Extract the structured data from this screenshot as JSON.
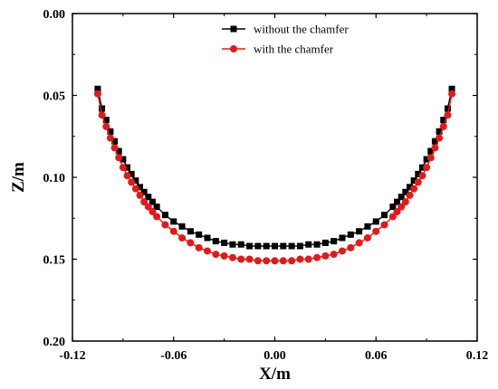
{
  "chart_data": {
    "type": "line",
    "xlabel": "X/m",
    "ylabel": "Z/m",
    "xlim": [
      -0.12,
      0.12
    ],
    "ylim": [
      0.0,
      0.2
    ],
    "y_inverted": true,
    "xticks": [
      -0.12,
      -0.06,
      0.0,
      0.06,
      0.12
    ],
    "xtick_labels": [
      "-0.12",
      "-0.06",
      "0.00",
      "0.06",
      "0.12"
    ],
    "yticks": [
      0.0,
      0.05,
      0.1,
      0.15,
      0.2
    ],
    "ytick_labels": [
      "0.00",
      "0.05",
      "0.10",
      "0.15",
      "0.20"
    ],
    "legend_position": "top-right",
    "series": [
      {
        "name": "without the chamfer",
        "color": "#000000",
        "marker": "square",
        "x": [
          -0.105,
          -0.1025,
          -0.1,
          -0.0975,
          -0.095,
          -0.0925,
          -0.09,
          -0.0875,
          -0.085,
          -0.0825,
          -0.08,
          -0.0775,
          -0.075,
          -0.0725,
          -0.07,
          -0.065,
          -0.06,
          -0.055,
          -0.05,
          -0.045,
          -0.04,
          -0.035,
          -0.03,
          -0.025,
          -0.02,
          -0.015,
          -0.01,
          -0.005,
          0.0,
          0.005,
          0.01,
          0.015,
          0.02,
          0.025,
          0.03,
          0.035,
          0.04,
          0.045,
          0.05,
          0.055,
          0.06,
          0.065,
          0.07,
          0.0725,
          0.075,
          0.0775,
          0.08,
          0.0825,
          0.085,
          0.0875,
          0.09,
          0.0925,
          0.095,
          0.0975,
          0.1,
          0.1025,
          0.105
        ],
        "y": [
          0.046,
          0.058,
          0.065,
          0.072,
          0.078,
          0.084,
          0.089,
          0.094,
          0.098,
          0.102,
          0.106,
          0.109,
          0.112,
          0.115,
          0.118,
          0.123,
          0.127,
          0.13,
          0.133,
          0.135,
          0.137,
          0.139,
          0.14,
          0.141,
          0.141,
          0.142,
          0.142,
          0.142,
          0.142,
          0.142,
          0.142,
          0.142,
          0.141,
          0.141,
          0.14,
          0.139,
          0.137,
          0.135,
          0.133,
          0.13,
          0.127,
          0.123,
          0.118,
          0.115,
          0.112,
          0.109,
          0.106,
          0.102,
          0.098,
          0.094,
          0.089,
          0.084,
          0.078,
          0.072,
          0.065,
          0.058,
          0.046
        ]
      },
      {
        "name": "with the chamfer",
        "color": "#e01b1b",
        "marker": "circle",
        "x": [
          -0.105,
          -0.1025,
          -0.1,
          -0.0975,
          -0.095,
          -0.0925,
          -0.09,
          -0.0875,
          -0.085,
          -0.0825,
          -0.08,
          -0.0775,
          -0.075,
          -0.0725,
          -0.07,
          -0.065,
          -0.06,
          -0.055,
          -0.05,
          -0.045,
          -0.04,
          -0.035,
          -0.03,
          -0.025,
          -0.02,
          -0.015,
          -0.01,
          -0.005,
          0.0,
          0.005,
          0.01,
          0.015,
          0.02,
          0.025,
          0.03,
          0.035,
          0.04,
          0.045,
          0.05,
          0.055,
          0.06,
          0.065,
          0.07,
          0.0725,
          0.075,
          0.0775,
          0.08,
          0.0825,
          0.085,
          0.0875,
          0.09,
          0.0925,
          0.095,
          0.0975,
          0.1,
          0.1025,
          0.105
        ],
        "y": [
          0.049,
          0.062,
          0.069,
          0.076,
          0.082,
          0.088,
          0.094,
          0.099,
          0.103,
          0.107,
          0.111,
          0.115,
          0.118,
          0.121,
          0.124,
          0.129,
          0.133,
          0.137,
          0.14,
          0.143,
          0.145,
          0.147,
          0.148,
          0.149,
          0.15,
          0.15,
          0.151,
          0.151,
          0.151,
          0.151,
          0.151,
          0.15,
          0.15,
          0.149,
          0.148,
          0.147,
          0.145,
          0.143,
          0.14,
          0.137,
          0.133,
          0.129,
          0.124,
          0.121,
          0.118,
          0.115,
          0.111,
          0.107,
          0.103,
          0.099,
          0.094,
          0.088,
          0.082,
          0.076,
          0.069,
          0.062,
          0.049
        ]
      }
    ]
  }
}
